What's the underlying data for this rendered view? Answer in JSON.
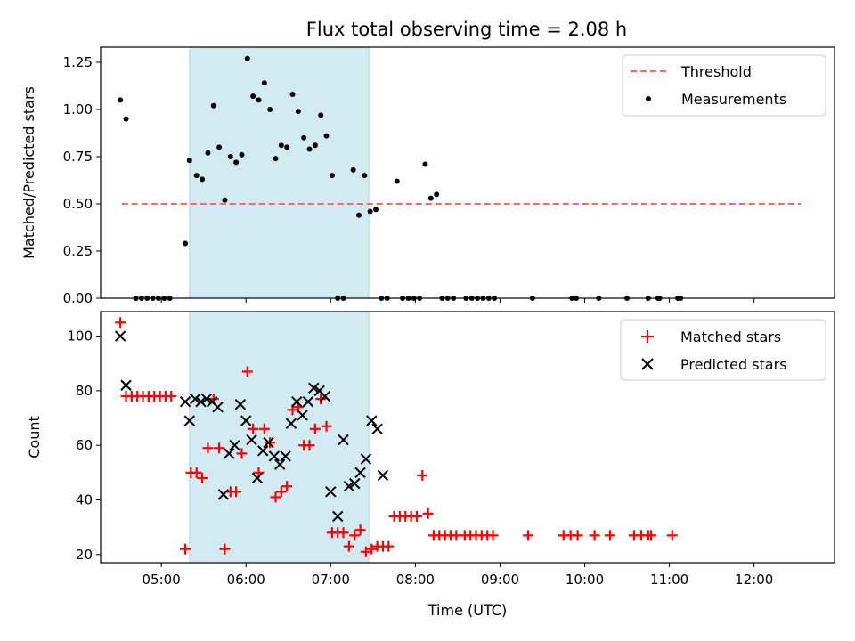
{
  "figure": {
    "title": "Flux total observing time = 2.08 h"
  },
  "chart_data": [
    {
      "type": "scatter",
      "ylabel": "Matched/Predicted stars",
      "xlabel": "",
      "ylim": [
        0,
        1.33
      ],
      "xlim": [
        "04:17",
        "12:57"
      ],
      "yticks": [
        0.0,
        0.25,
        0.5,
        0.75,
        1.0,
        1.25
      ],
      "ytick_labels": [
        "0.00",
        "0.25",
        "0.50",
        "0.75",
        "1.00",
        "1.25"
      ],
      "shaded_region": {
        "x_start": "05:20",
        "x_end": "07:27",
        "color": "#add8e6"
      },
      "legend_position": "top-right",
      "threshold": {
        "name": "Threshold",
        "value": 0.5,
        "x_range": [
          "04:32",
          "12:33"
        ],
        "color": "#ff6666"
      },
      "series": [
        {
          "name": "Measurements",
          "color": "#000000",
          "marker": "dot",
          "points": [
            [
              "04:31",
              1.05
            ],
            [
              "04:35",
              0.95
            ],
            [
              "04:42",
              0.0
            ],
            [
              "04:46",
              0.0
            ],
            [
              "04:50",
              0.0
            ],
            [
              "04:54",
              0.0
            ],
            [
              "04:58",
              0.0
            ],
            [
              "05:02",
              0.0
            ],
            [
              "05:06",
              0.0
            ],
            [
              "05:17",
              0.29
            ],
            [
              "05:20",
              0.73
            ],
            [
              "05:25",
              0.65
            ],
            [
              "05:29",
              0.63
            ],
            [
              "05:33",
              0.77
            ],
            [
              "05:37",
              1.02
            ],
            [
              "05:41",
              0.8
            ],
            [
              "05:45",
              0.52
            ],
            [
              "05:49",
              0.75
            ],
            [
              "05:53",
              0.72
            ],
            [
              "05:57",
              0.76
            ],
            [
              "06:01",
              1.27
            ],
            [
              "06:05",
              1.07
            ],
            [
              "06:09",
              1.05
            ],
            [
              "06:13",
              1.14
            ],
            [
              "06:17",
              1.0
            ],
            [
              "06:21",
              0.74
            ],
            [
              "06:25",
              0.81
            ],
            [
              "06:29",
              0.8
            ],
            [
              "06:33",
              1.08
            ],
            [
              "06:37",
              0.99
            ],
            [
              "06:41",
              0.85
            ],
            [
              "06:45",
              0.79
            ],
            [
              "06:49",
              0.81
            ],
            [
              "06:53",
              0.97
            ],
            [
              "06:57",
              0.86
            ],
            [
              "07:01",
              0.65
            ],
            [
              "07:05",
              0.0
            ],
            [
              "07:09",
              0.0
            ],
            [
              "07:16",
              0.68
            ],
            [
              "07:20",
              0.44
            ],
            [
              "07:24",
              0.65
            ],
            [
              "07:28",
              0.46
            ],
            [
              "07:32",
              0.47
            ],
            [
              "07:36",
              0.0
            ],
            [
              "07:40",
              0.0
            ],
            [
              "07:47",
              0.62
            ],
            [
              "07:51",
              0.0
            ],
            [
              "07:55",
              0.0
            ],
            [
              "07:59",
              0.0
            ],
            [
              "08:03",
              0.0
            ],
            [
              "08:07",
              0.71
            ],
            [
              "08:11",
              0.53
            ],
            [
              "08:15",
              0.55
            ],
            [
              "08:19",
              0.0
            ],
            [
              "08:23",
              0.0
            ],
            [
              "08:27",
              0.0
            ],
            [
              "08:36",
              0.0
            ],
            [
              "08:40",
              0.0
            ],
            [
              "08:44",
              0.0
            ],
            [
              "08:48",
              0.0
            ],
            [
              "08:52",
              0.0
            ],
            [
              "08:56",
              0.0
            ],
            [
              "09:23",
              0.0
            ],
            [
              "09:51",
              0.0
            ],
            [
              "09:54",
              0.0
            ],
            [
              "10:10",
              0.0
            ],
            [
              "10:30",
              0.0
            ],
            [
              "10:45",
              0.0
            ],
            [
              "10:52",
              0.0
            ],
            [
              "10:53",
              0.0
            ],
            [
              "11:06",
              0.0
            ],
            [
              "11:08",
              0.0
            ]
          ]
        }
      ]
    },
    {
      "type": "scatter",
      "ylabel": "Count",
      "xlabel": "Time (UTC)",
      "ylim": [
        17,
        109
      ],
      "xlim": [
        "04:17",
        "12:57"
      ],
      "yticks": [
        20,
        40,
        60,
        80,
        100
      ],
      "ytick_labels": [
        "20",
        "40",
        "60",
        "80",
        "100"
      ],
      "xticks": [
        "05:00",
        "06:00",
        "07:00",
        "08:00",
        "09:00",
        "10:00",
        "11:00",
        "12:00"
      ],
      "shaded_region": {
        "x_start": "05:20",
        "x_end": "07:27",
        "color": "#add8e6"
      },
      "legend_position": "top-right",
      "series": [
        {
          "name": "Matched stars",
          "color": "#ff0000",
          "marker": "plus",
          "points": [
            [
              "04:31",
              105
            ],
            [
              "04:35",
              78
            ],
            [
              "04:39",
              78
            ],
            [
              "04:43",
              78
            ],
            [
              "04:47",
              78
            ],
            [
              "04:51",
              78
            ],
            [
              "04:55",
              78
            ],
            [
              "04:59",
              78
            ],
            [
              "05:03",
              78
            ],
            [
              "05:07",
              78
            ],
            [
              "05:17",
              22
            ],
            [
              "05:21",
              50
            ],
            [
              "05:25",
              50
            ],
            [
              "05:29",
              48
            ],
            [
              "05:33",
              59
            ],
            [
              "05:37",
              77
            ],
            [
              "05:41",
              59
            ],
            [
              "05:45",
              22
            ],
            [
              "05:49",
              43
            ],
            [
              "05:53",
              43
            ],
            [
              "05:57",
              57
            ],
            [
              "06:01",
              87
            ],
            [
              "06:05",
              66
            ],
            [
              "06:09",
              50
            ],
            [
              "06:13",
              66
            ],
            [
              "06:17",
              61
            ],
            [
              "06:21",
              41
            ],
            [
              "06:25",
              43
            ],
            [
              "06:29",
              45
            ],
            [
              "06:33",
              73
            ],
            [
              "06:37",
              74
            ],
            [
              "06:41",
              60
            ],
            [
              "06:45",
              60
            ],
            [
              "06:49",
              66
            ],
            [
              "06:53",
              77
            ],
            [
              "06:57",
              67
            ],
            [
              "07:01",
              28
            ],
            [
              "07:05",
              28
            ],
            [
              "07:09",
              28
            ],
            [
              "07:13",
              23
            ],
            [
              "07:17",
              27
            ],
            [
              "07:21",
              29
            ],
            [
              "07:25",
              21
            ],
            [
              "07:29",
              22
            ],
            [
              "07:33",
              23
            ],
            [
              "07:37",
              23
            ],
            [
              "07:41",
              23
            ],
            [
              "07:45",
              34
            ],
            [
              "07:49",
              34
            ],
            [
              "07:53",
              34
            ],
            [
              "07:57",
              34
            ],
            [
              "08:01",
              34
            ],
            [
              "08:05",
              49
            ],
            [
              "08:09",
              35
            ],
            [
              "08:13",
              27
            ],
            [
              "08:17",
              27
            ],
            [
              "08:21",
              27
            ],
            [
              "08:25",
              27
            ],
            [
              "08:29",
              27
            ],
            [
              "08:35",
              27
            ],
            [
              "08:39",
              27
            ],
            [
              "08:43",
              27
            ],
            [
              "08:47",
              27
            ],
            [
              "08:51",
              27
            ],
            [
              "08:55",
              27
            ],
            [
              "09:20",
              27
            ],
            [
              "09:45",
              27
            ],
            [
              "09:50",
              27
            ],
            [
              "09:55",
              27
            ],
            [
              "10:07",
              27
            ],
            [
              "10:18",
              27
            ],
            [
              "10:35",
              27
            ],
            [
              "10:40",
              27
            ],
            [
              "10:45",
              27
            ],
            [
              "10:47",
              27
            ],
            [
              "11:02",
              27
            ]
          ]
        },
        {
          "name": "Predicted stars",
          "color": "#000000",
          "marker": "x",
          "points": [
            [
              "04:31",
              100
            ],
            [
              "04:35",
              82
            ],
            [
              "05:17",
              76
            ],
            [
              "05:20",
              69
            ],
            [
              "05:24",
              77
            ],
            [
              "05:28",
              76
            ],
            [
              "05:32",
              77
            ],
            [
              "05:36",
              76
            ],
            [
              "05:40",
              74
            ],
            [
              "05:44",
              42
            ],
            [
              "05:48",
              57
            ],
            [
              "05:52",
              60
            ],
            [
              "05:56",
              75
            ],
            [
              "06:00",
              69
            ],
            [
              "06:04",
              62
            ],
            [
              "06:08",
              48
            ],
            [
              "06:12",
              58
            ],
            [
              "06:16",
              61
            ],
            [
              "06:20",
              56
            ],
            [
              "06:24",
              53
            ],
            [
              "06:28",
              56
            ],
            [
              "06:32",
              68
            ],
            [
              "06:36",
              76
            ],
            [
              "06:40",
              71
            ],
            [
              "06:44",
              76
            ],
            [
              "06:48",
              81
            ],
            [
              "06:52",
              80
            ],
            [
              "06:56",
              78
            ],
            [
              "07:00",
              43
            ],
            [
              "07:05",
              34
            ],
            [
              "07:09",
              62
            ],
            [
              "07:13",
              45
            ],
            [
              "07:17",
              46
            ],
            [
              "07:21",
              50
            ],
            [
              "07:25",
              55
            ],
            [
              "07:29",
              69
            ],
            [
              "07:33",
              66
            ],
            [
              "07:37",
              49
            ]
          ]
        }
      ]
    }
  ]
}
